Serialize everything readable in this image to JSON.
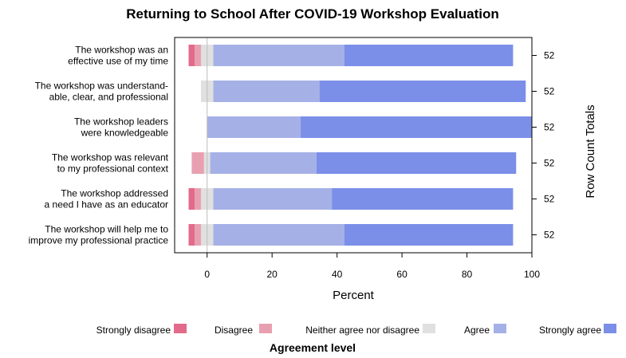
{
  "chart_data": {
    "type": "bar",
    "orientation": "horizontal",
    "stacked": "diverging",
    "title": "Returning to School After COVID-19 Workshop Evaluation",
    "xlabel": "Percent",
    "right_axis_label": "Row Count Totals",
    "xlim": [
      -10,
      100
    ],
    "xticks": [
      0,
      20,
      40,
      60,
      80,
      100
    ],
    "legend_title": "Agreement level",
    "legend_position": "bottom",
    "categories": [
      [
        "The workshop was an",
        "effective use of my time"
      ],
      [
        "The workshop was understand-",
        "able, clear, and professional"
      ],
      [
        "The workshop leaders",
        "were knowledgeable"
      ],
      [
        "The workshop was relevant",
        "to my professional context"
      ],
      [
        "The workshop addressed",
        "a need I have as an educator"
      ],
      [
        "The workshop will help me to",
        "improve my professional practice"
      ]
    ],
    "row_totals": [
      "52",
      "52",
      "52",
      "52",
      "52",
      "52"
    ],
    "series": [
      {
        "name": "Strongly disagree",
        "color": "#e26a8a",
        "values": [
          1.9,
          0,
          0,
          0,
          1.9,
          1.9
        ]
      },
      {
        "name": "Disagree",
        "color": "#e8a0b0",
        "values": [
          1.9,
          0,
          0,
          3.8,
          1.9,
          1.9
        ]
      },
      {
        "name": "Neither agree nor disagree",
        "color": "#e0e0e0",
        "values": [
          3.8,
          3.8,
          0,
          1.9,
          3.8,
          3.8
        ]
      },
      {
        "name": "Agree",
        "color": "#a5b1e6",
        "values": [
          40.4,
          32.7,
          28.8,
          32.7,
          36.5,
          40.4
        ]
      },
      {
        "name": "Strongly agree",
        "color": "#7b8fe8",
        "values": [
          51.9,
          63.5,
          71.2,
          61.5,
          55.8,
          51.9
        ]
      }
    ]
  }
}
